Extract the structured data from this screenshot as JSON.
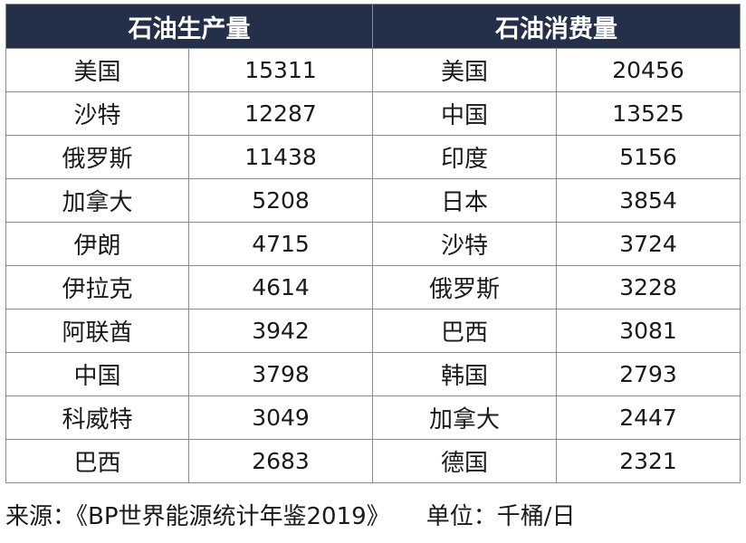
{
  "table": {
    "headers": [
      "石油生产量",
      "石油消费量"
    ],
    "rows": [
      {
        "producer": "美国",
        "production": "15311",
        "consumer": "美国",
        "consumption": "20456"
      },
      {
        "producer": "沙特",
        "production": "12287",
        "consumer": "中国",
        "consumption": "13525"
      },
      {
        "producer": "俄罗斯",
        "production": "11438",
        "consumer": "印度",
        "consumption": "5156"
      },
      {
        "producer": "加拿大",
        "production": "5208",
        "consumer": "日本",
        "consumption": "3854"
      },
      {
        "producer": "伊朗",
        "production": "4715",
        "consumer": "沙特",
        "consumption": "3724"
      },
      {
        "producer": "伊拉克",
        "production": "4614",
        "consumer": "俄罗斯",
        "consumption": "3228"
      },
      {
        "producer": "阿联酋",
        "production": "3942",
        "consumer": "巴西",
        "consumption": "3081"
      },
      {
        "producer": "中国",
        "production": "3798",
        "consumer": "韩国",
        "consumption": "2793"
      },
      {
        "producer": "科威特",
        "production": "3049",
        "consumer": "加拿大",
        "consumption": "2447"
      },
      {
        "producer": "巴西",
        "production": "2683",
        "consumer": "德国",
        "consumption": "2321"
      }
    ]
  },
  "footer": {
    "source": "来源：《BP世界能源统计年鉴2019》",
    "unit": "单位：千桶/日"
  },
  "colors": {
    "header_bg": "#24304a",
    "header_text": "#ffffff",
    "border": "#8a8a8a"
  }
}
